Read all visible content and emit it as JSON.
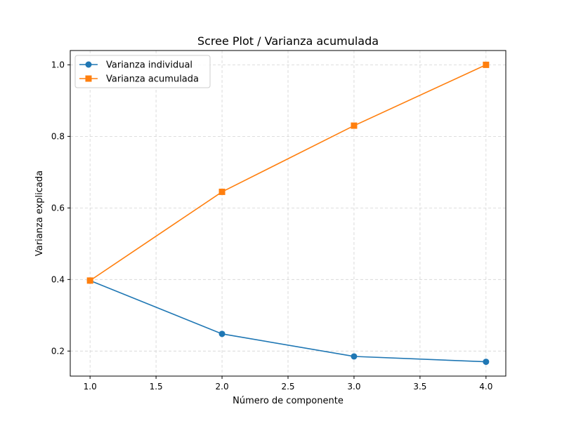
{
  "chart_data": {
    "type": "line",
    "title": "Scree Plot / Varianza acumulada",
    "xlabel": "Número de componente",
    "ylabel": "Varianza explicada",
    "xlim": [
      0.85,
      4.15
    ],
    "ylim": [
      0.13,
      1.04
    ],
    "xticks": [
      1.0,
      1.5,
      2.0,
      2.5,
      3.0,
      3.5,
      4.0
    ],
    "xtick_labels": [
      "1.0",
      "1.5",
      "2.0",
      "2.5",
      "3.0",
      "3.5",
      "4.0"
    ],
    "yticks": [
      0.2,
      0.4,
      0.6,
      0.8,
      1.0
    ],
    "ytick_labels": [
      "0.2",
      "0.4",
      "0.6",
      "0.8",
      "1.0"
    ],
    "grid": true,
    "legend_position": "top-left",
    "x": [
      1,
      2,
      3,
      4
    ],
    "series": [
      {
        "name": "Varianza individual",
        "values": [
          0.397,
          0.248,
          0.185,
          0.17
        ],
        "color": "#1f77b4",
        "marker": "circle"
      },
      {
        "name": "Varianza acumulada",
        "values": [
          0.397,
          0.645,
          0.83,
          1.0
        ],
        "color": "#ff7f0e",
        "marker": "square"
      }
    ]
  }
}
